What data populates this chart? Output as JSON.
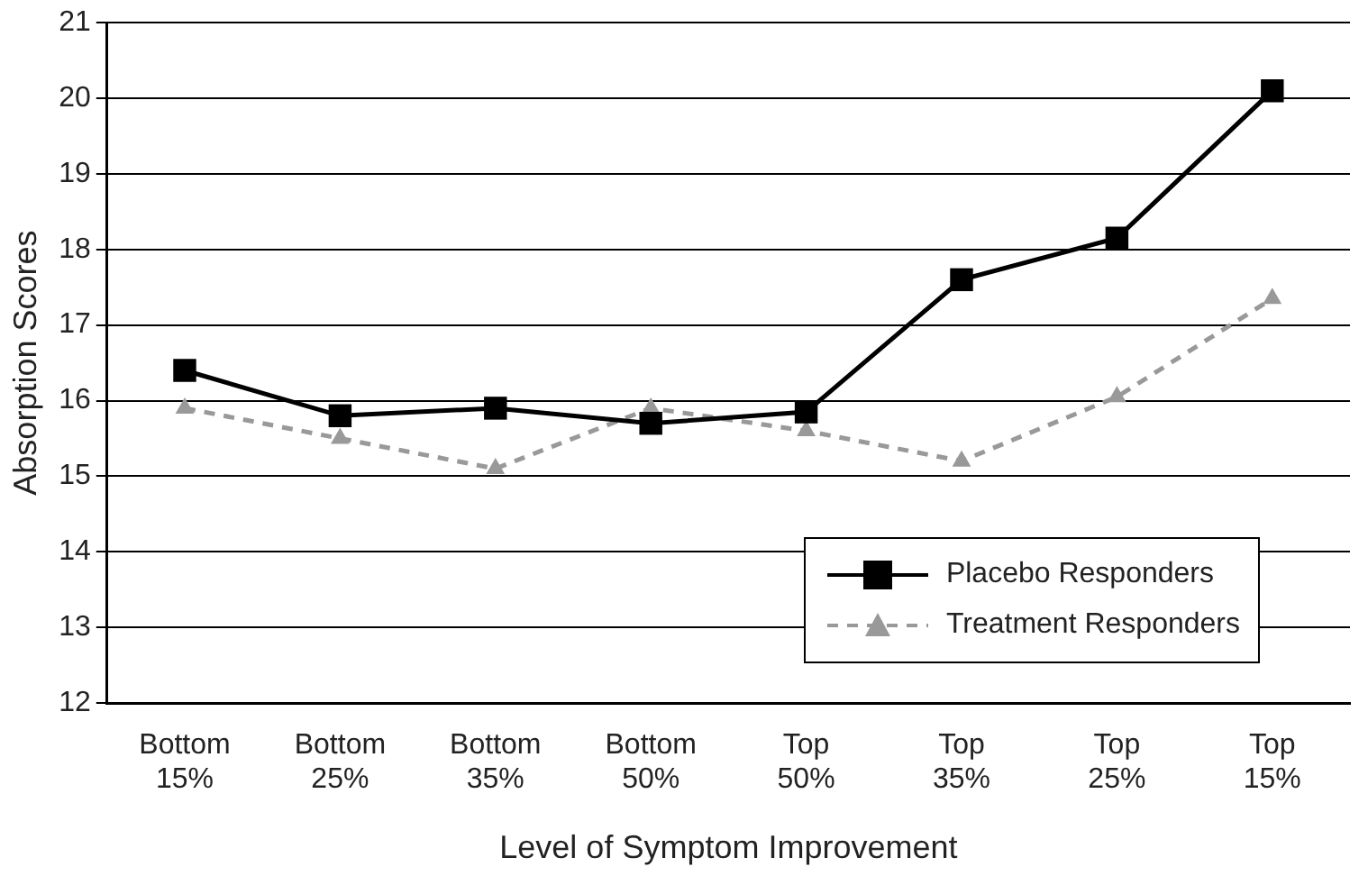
{
  "chart_data": {
    "type": "line",
    "xlabel": "Level of Symptom Improvement",
    "ylabel": "Absorption Scores",
    "categories": [
      "Bottom 15%",
      "Bottom 25%",
      "Bottom 35%",
      "Bottom 50%",
      "Top 50%",
      "Top 35%",
      "Top 25%",
      "Top 15%"
    ],
    "series": [
      {
        "name": "Placebo Responders",
        "color": "#000000",
        "marker": "square",
        "line_style": "solid",
        "values": [
          16.4,
          15.8,
          15.9,
          15.7,
          15.85,
          17.6,
          18.15,
          20.1
        ]
      },
      {
        "name": "Treatment Responders",
        "color": "#999999",
        "marker": "triangle",
        "line_style": "dashed",
        "values": [
          15.9,
          15.5,
          15.1,
          15.9,
          15.6,
          15.2,
          16.05,
          17.35
        ]
      }
    ],
    "ylim": [
      12,
      21
    ],
    "yticks": [
      12,
      13,
      14,
      15,
      16,
      17,
      18,
      19,
      20,
      21
    ],
    "grid": "y",
    "legend": "bottom right"
  }
}
